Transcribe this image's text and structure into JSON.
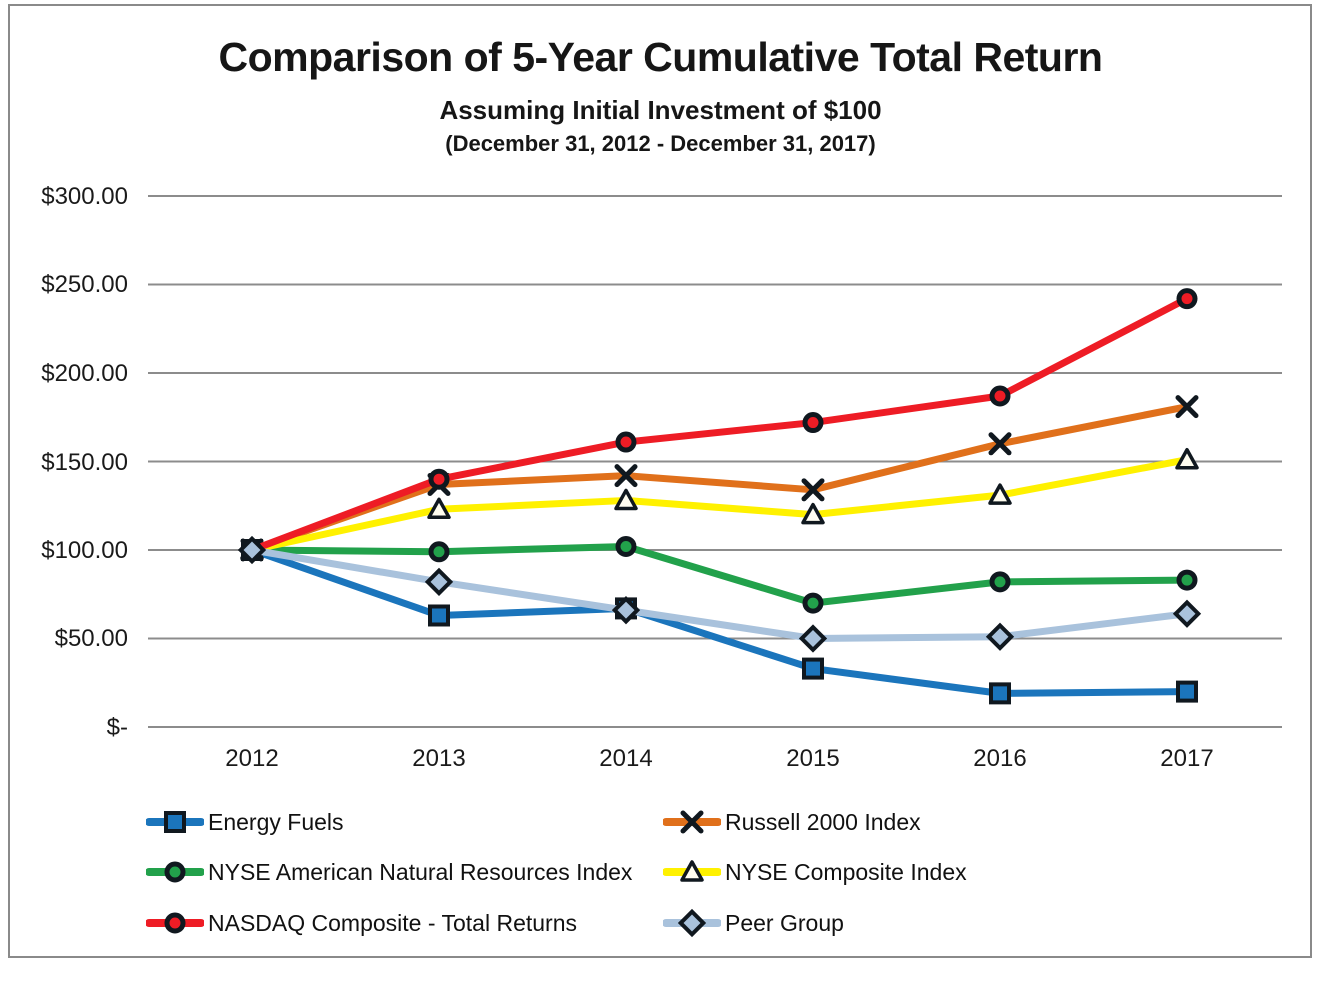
{
  "title": "Comparison of 5-Year Cumulative Total Return",
  "subtitle": "Assuming Initial Investment of $100",
  "period": "(December 31, 2012 - December 31, 2017)",
  "chart_data": {
    "type": "line",
    "x": [
      2012,
      2013,
      2014,
      2015,
      2016,
      2017
    ],
    "x_labels": [
      "2012",
      "2013",
      "2014",
      "2015",
      "2016",
      "2017"
    ],
    "y_ticks": [
      "$300.00",
      "$250.00",
      "$200.00",
      "$150.00",
      "$100.00",
      "$50.00",
      "$-"
    ],
    "y_tick_values": [
      300,
      250,
      200,
      150,
      100,
      50,
      0
    ],
    "ylim": [
      0,
      300
    ],
    "grid": "horizontal",
    "gridline_color": "#8c8c8c",
    "marker_outline": "#10181f",
    "legend_position": "bottom",
    "series": [
      {
        "name": "Energy Fuels",
        "color": "#1b75bc",
        "marker": "square",
        "marker_fill": "#1b75bc",
        "values": [
          100,
          63,
          67,
          33,
          19,
          20
        ]
      },
      {
        "name": "Russell 2000 Index",
        "color": "#e0701b",
        "marker": "x",
        "marker_fill": "#10181f",
        "values": [
          100,
          137,
          142,
          134,
          160,
          181
        ]
      },
      {
        "name": "NYSE American Natural Resources Index",
        "color": "#22a14b",
        "marker": "circle",
        "marker_fill": "#22a14b",
        "values": [
          100,
          99,
          102,
          70,
          82,
          83
        ]
      },
      {
        "name": "NYSE Composite Index",
        "color": "#fff100",
        "marker": "triangle",
        "marker_fill": "#fffdf0",
        "values": [
          100,
          123,
          128,
          120,
          131,
          151
        ]
      },
      {
        "name": "NASDAQ Composite - Total Returns",
        "color": "#ee1c25",
        "marker": "circle",
        "marker_fill": "#ee1c25",
        "values": [
          100,
          140,
          161,
          172,
          187,
          242
        ]
      },
      {
        "name": "Peer Group",
        "color": "#a9c2dc",
        "marker": "diamond",
        "marker_fill": "#a9c2dc",
        "values": [
          100,
          82,
          66,
          50,
          51,
          64
        ]
      }
    ]
  }
}
